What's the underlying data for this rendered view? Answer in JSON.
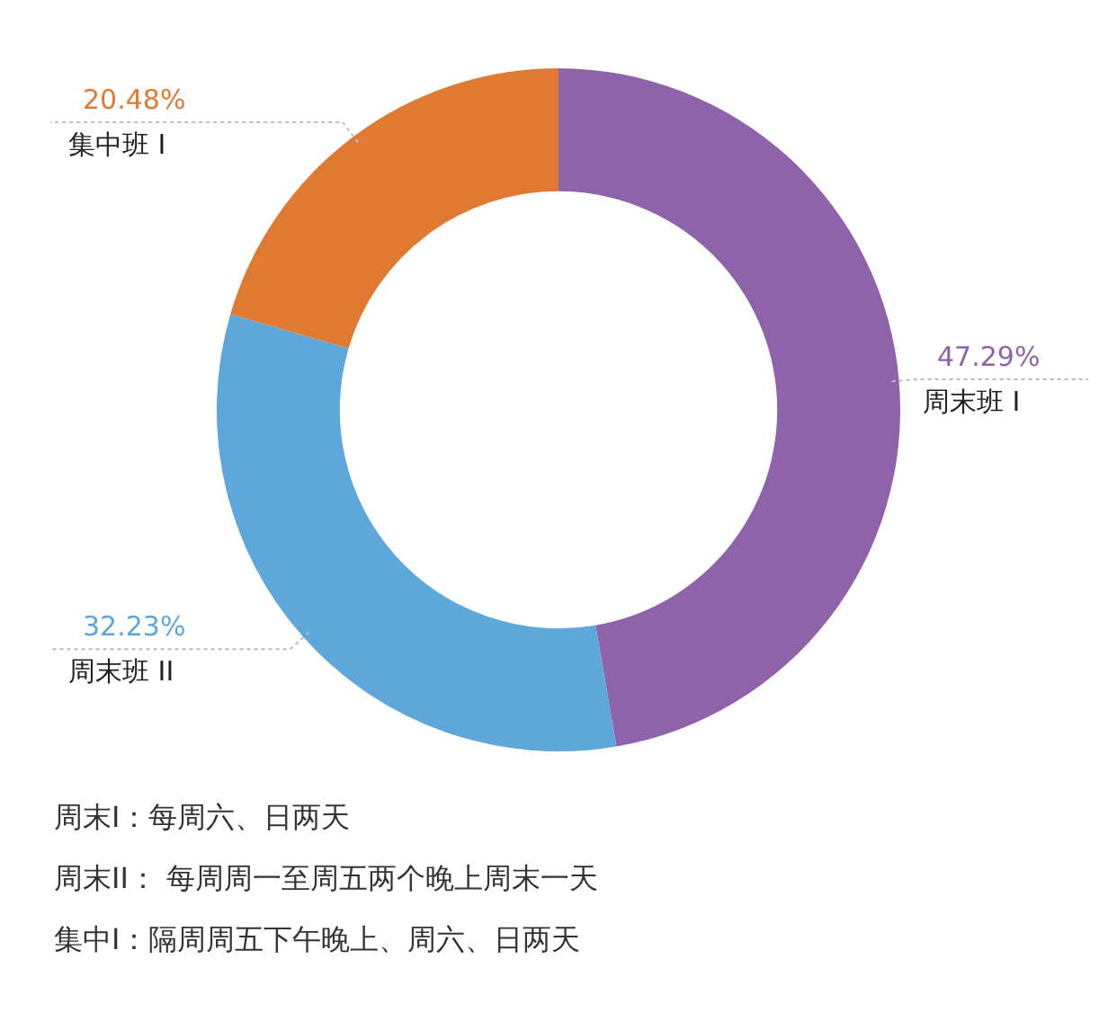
{
  "chart_data": {
    "type": "donut",
    "categories": [
      "周末班 I",
      "周末班 II",
      "集中班 I"
    ],
    "values": [
      47.29,
      32.23,
      20.48
    ],
    "value_labels": [
      "47.29%",
      "32.23%",
      "20.48%"
    ],
    "colors": [
      "#8e63a9",
      "#5da7db",
      "#e07a32"
    ],
    "legend": false,
    "annotations": [
      "周末I：每周六、日两天",
      "周末II： 每周周一至周五两个晚上周末一天",
      "集中I：隔周周五下午晚上、周六、日两天"
    ]
  }
}
